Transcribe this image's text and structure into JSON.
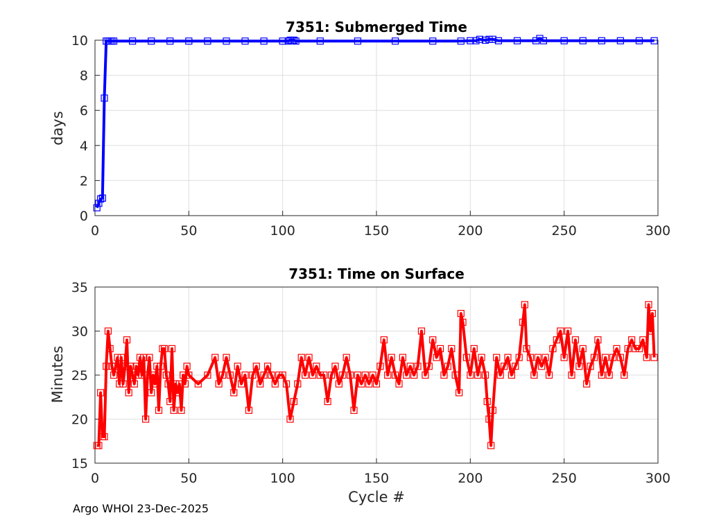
{
  "footer": "Argo WHOI 23-Dec-2025",
  "chart_data": [
    {
      "type": "line",
      "title": "7351: Submerged Time",
      "xlabel": "",
      "ylabel": "days",
      "xlim": [
        0,
        300
      ],
      "ylim": [
        0,
        10
      ],
      "xticks": [
        "0",
        "50",
        "100",
        "150",
        "200",
        "250",
        "300"
      ],
      "yticks": [
        "0",
        "2",
        "4",
        "6",
        "8",
        "10"
      ],
      "grid": true,
      "color": "#0000ff",
      "marker": "square",
      "series": [
        {
          "points": [
            [
              1,
              0.45
            ],
            [
              2,
              0.7
            ],
            [
              3,
              0.95
            ],
            [
              4,
              1.0
            ],
            [
              5,
              6.7
            ],
            [
              6,
              9.95
            ],
            [
              7,
              9.95
            ],
            [
              8,
              9.95
            ],
            [
              9,
              9.95
            ],
            [
              10,
              9.95
            ],
            [
              20,
              9.95
            ],
            [
              30,
              9.95
            ],
            [
              40,
              9.95
            ],
            [
              50,
              9.95
            ],
            [
              60,
              9.95
            ],
            [
              70,
              9.95
            ],
            [
              80,
              9.95
            ],
            [
              90,
              9.95
            ],
            [
              100,
              9.95
            ],
            [
              103,
              9.95
            ],
            [
              104,
              10.0
            ],
            [
              105,
              10.0
            ],
            [
              106,
              10.0
            ],
            [
              107,
              9.95
            ],
            [
              120,
              9.95
            ],
            [
              140,
              9.95
            ],
            [
              160,
              9.95
            ],
            [
              180,
              9.95
            ],
            [
              195,
              9.95
            ],
            [
              200,
              9.97
            ],
            [
              203,
              9.97
            ],
            [
              205,
              10.05
            ],
            [
              208,
              10.0
            ],
            [
              210,
              10.05
            ],
            [
              212,
              10.05
            ],
            [
              215,
              9.97
            ],
            [
              225,
              9.97
            ],
            [
              235,
              9.97
            ],
            [
              237,
              10.1
            ],
            [
              239,
              9.97
            ],
            [
              250,
              9.97
            ],
            [
              260,
              9.97
            ],
            [
              270,
              9.97
            ],
            [
              280,
              9.97
            ],
            [
              290,
              9.97
            ],
            [
              298,
              9.97
            ]
          ]
        }
      ]
    },
    {
      "type": "line",
      "title": "7351: Time on Surface",
      "xlabel": "Cycle #",
      "ylabel": "Minutes",
      "xlim": [
        0,
        300
      ],
      "ylim": [
        15,
        35
      ],
      "xticks": [
        "0",
        "50",
        "100",
        "150",
        "200",
        "250",
        "300"
      ],
      "yticks": [
        "15",
        "20",
        "25",
        "30",
        "35"
      ],
      "grid": true,
      "color": "#ff0000",
      "marker": "square",
      "series": [
        {
          "points": [
            [
              1,
              17
            ],
            [
              2,
              17
            ],
            [
              3,
              23
            ],
            [
              4,
              18
            ],
            [
              5,
              18
            ],
            [
              6,
              26
            ],
            [
              7,
              30
            ],
            [
              8,
              28
            ],
            [
              9,
              26
            ],
            [
              10,
              25
            ],
            [
              11,
              26
            ],
            [
              12,
              27
            ],
            [
              13,
              24
            ],
            [
              14,
              27
            ],
            [
              15,
              24
            ],
            [
              16,
              26
            ],
            [
              17,
              29
            ],
            [
              18,
              23
            ],
            [
              19,
              26
            ],
            [
              20,
              25
            ],
            [
              21,
              24
            ],
            [
              22,
              26
            ],
            [
              23,
              25
            ],
            [
              24,
              27
            ],
            [
              25,
              25
            ],
            [
              26,
              27
            ],
            [
              27,
              20
            ],
            [
              28,
              25
            ],
            [
              29,
              27
            ],
            [
              30,
              23
            ],
            [
              31,
              25
            ],
            [
              32,
              24
            ],
            [
              33,
              26
            ],
            [
              34,
              21
            ],
            [
              35,
              26
            ],
            [
              36,
              28
            ],
            [
              37,
              28
            ],
            [
              38,
              25
            ],
            [
              39,
              24
            ],
            [
              40,
              22
            ],
            [
              41,
              28
            ],
            [
              42,
              21
            ],
            [
              43,
              24
            ],
            [
              44,
              23
            ],
            [
              45,
              24
            ],
            [
              46,
              21
            ],
            [
              47,
              25
            ],
            [
              48,
              24
            ],
            [
              49,
              26
            ],
            [
              50,
              25
            ],
            [
              55,
              24
            ],
            [
              60,
              25
            ],
            [
              64,
              27
            ],
            [
              66,
              24
            ],
            [
              68,
              25
            ],
            [
              70,
              27
            ],
            [
              72,
              25
            ],
            [
              74,
              23
            ],
            [
              76,
              26
            ],
            [
              78,
              24
            ],
            [
              80,
              25
            ],
            [
              82,
              21
            ],
            [
              84,
              25
            ],
            [
              86,
              26
            ],
            [
              88,
              24
            ],
            [
              90,
              25
            ],
            [
              92,
              26
            ],
            [
              94,
              25
            ],
            [
              96,
              24
            ],
            [
              98,
              25
            ],
            [
              100,
              25
            ],
            [
              102,
              24
            ],
            [
              104,
              20
            ],
            [
              106,
              22
            ],
            [
              108,
              24
            ],
            [
              110,
              27
            ],
            [
              112,
              25
            ],
            [
              114,
              27
            ],
            [
              116,
              25
            ],
            [
              118,
              26
            ],
            [
              120,
              25
            ],
            [
              122,
              25
            ],
            [
              124,
              22
            ],
            [
              126,
              25
            ],
            [
              128,
              26
            ],
            [
              130,
              24
            ],
            [
              132,
              25
            ],
            [
              134,
              27
            ],
            [
              136,
              25
            ],
            [
              138,
              21
            ],
            [
              140,
              25
            ],
            [
              142,
              24
            ],
            [
              144,
              25
            ],
            [
              146,
              24
            ],
            [
              148,
              25
            ],
            [
              150,
              24
            ],
            [
              152,
              26
            ],
            [
              154,
              29
            ],
            [
              156,
              25
            ],
            [
              158,
              27
            ],
            [
              160,
              25
            ],
            [
              162,
              24
            ],
            [
              164,
              27
            ],
            [
              166,
              25
            ],
            [
              168,
              26
            ],
            [
              170,
              25
            ],
            [
              172,
              26
            ],
            [
              174,
              30
            ],
            [
              176,
              25
            ],
            [
              178,
              26
            ],
            [
              180,
              29
            ],
            [
              182,
              27
            ],
            [
              184,
              28
            ],
            [
              186,
              25
            ],
            [
              188,
              26
            ],
            [
              190,
              28
            ],
            [
              192,
              25
            ],
            [
              194,
              23
            ],
            [
              195,
              32
            ],
            [
              196,
              31
            ],
            [
              198,
              27
            ],
            [
              200,
              25
            ],
            [
              202,
              28
            ],
            [
              204,
              25
            ],
            [
              206,
              27
            ],
            [
              208,
              25
            ],
            [
              209,
              22
            ],
            [
              210,
              20
            ],
            [
              211,
              17
            ],
            [
              212,
              21
            ],
            [
              214,
              27
            ],
            [
              216,
              25
            ],
            [
              218,
              26
            ],
            [
              220,
              27
            ],
            [
              222,
              25
            ],
            [
              224,
              26
            ],
            [
              226,
              27
            ],
            [
              228,
              31
            ],
            [
              229,
              33
            ],
            [
              230,
              28
            ],
            [
              232,
              27
            ],
            [
              234,
              25
            ],
            [
              236,
              27
            ],
            [
              238,
              26
            ],
            [
              240,
              27
            ],
            [
              242,
              25
            ],
            [
              244,
              28
            ],
            [
              246,
              29
            ],
            [
              248,
              30
            ],
            [
              250,
              27
            ],
            [
              252,
              30
            ],
            [
              254,
              25
            ],
            [
              256,
              29
            ],
            [
              258,
              26
            ],
            [
              260,
              28
            ],
            [
              262,
              24
            ],
            [
              264,
              26
            ],
            [
              266,
              27
            ],
            [
              268,
              29
            ],
            [
              270,
              25
            ],
            [
              272,
              27
            ],
            [
              274,
              25
            ],
            [
              276,
              27
            ],
            [
              278,
              28
            ],
            [
              280,
              27
            ],
            [
              282,
              25
            ],
            [
              284,
              28
            ],
            [
              286,
              29
            ],
            [
              288,
              28
            ],
            [
              290,
              28
            ],
            [
              292,
              29
            ],
            [
              294,
              27
            ],
            [
              295,
              33
            ],
            [
              296,
              30
            ],
            [
              297,
              32
            ],
            [
              298,
              27
            ]
          ]
        }
      ]
    }
  ]
}
